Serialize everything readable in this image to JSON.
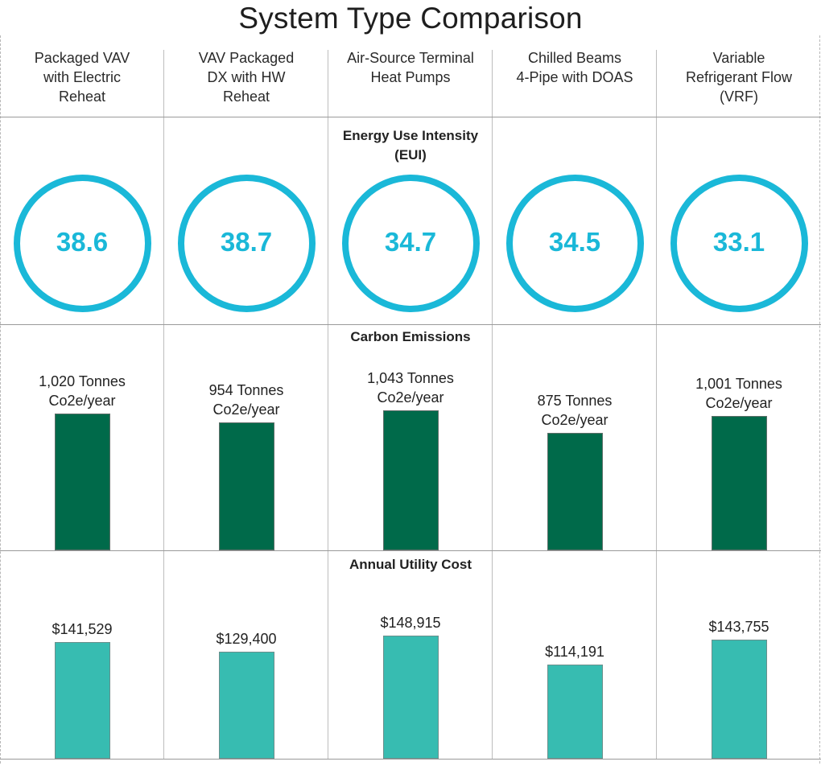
{
  "title": "System Type Comparison",
  "columns": [
    {
      "label": "Packaged VAV with Electric Reheat",
      "lines": [
        "Packaged VAV",
        "with Electric",
        "Reheat"
      ]
    },
    {
      "label": "VAV Packaged DX with HW Reheat",
      "lines": [
        "VAV Packaged",
        "DX with HW",
        "Reheat"
      ]
    },
    {
      "label": "Air-Source Terminal Heat Pumps",
      "lines": [
        "Air-Source Terminal",
        "Heat Pumps"
      ]
    },
    {
      "label": "Chilled Beams 4-Pipe with DOAS",
      "lines": [
        "Chilled Beams",
        "4-Pipe with DOAS"
      ]
    },
    {
      "label": "Variable Refrigerant Flow (VRF)",
      "lines": [
        "Variable",
        "Refrigerant Flow",
        "(VRF)"
      ]
    }
  ],
  "sections": {
    "eui": {
      "title_lines": [
        "Energy Use Intensity",
        "(EUI)"
      ]
    },
    "carbon": {
      "title_lines": [
        "Carbon Emissions"
      ]
    },
    "cost": {
      "title_lines": [
        "Annual Utility Cost"
      ]
    }
  },
  "colors": {
    "ring": "#1ab8d8",
    "carbon_bar": "#006a4a",
    "cost_bar": "#37bcb1"
  },
  "chart_data": [
    {
      "type": "table",
      "title": "Energy Use Intensity (EUI)",
      "categories": [
        "Packaged VAV with Electric Reheat",
        "VAV Packaged DX with HW Reheat",
        "Air-Source Terminal Heat Pumps",
        "Chilled Beams 4-Pipe with DOAS",
        "Variable Refrigerant Flow (VRF)"
      ],
      "values": [
        38.6,
        38.7,
        34.7,
        34.5,
        33.1
      ],
      "value_labels": [
        "38.6",
        "38.7",
        "34.7",
        "34.5",
        "33.1"
      ]
    },
    {
      "type": "bar",
      "title": "Carbon Emissions",
      "categories": [
        "Packaged VAV with Electric Reheat",
        "VAV Packaged DX with HW Reheat",
        "Air-Source Terminal Heat Pumps",
        "Chilled Beams 4-Pipe with DOAS",
        "Variable Refrigerant Flow (VRF)"
      ],
      "values": [
        1020,
        954,
        1043,
        875,
        1001
      ],
      "value_labels": [
        [
          "1,020 Tonnes",
          "Co2e/year"
        ],
        [
          "954 Tonnes",
          "Co2e/year"
        ],
        [
          "1,043 Tonnes",
          "Co2e/year"
        ],
        [
          "875 Tonnes",
          "Co2e/year"
        ],
        [
          "1,001 Tonnes",
          "Co2e/year"
        ]
      ],
      "ylim": [
        0,
        1043
      ]
    },
    {
      "type": "bar",
      "title": "Annual Utility Cost",
      "categories": [
        "Packaged VAV with Electric Reheat",
        "VAV Packaged DX with HW Reheat",
        "Air-Source Terminal Heat Pumps",
        "Chilled Beams 4-Pipe with DOAS",
        "Variable Refrigerant Flow (VRF)"
      ],
      "values": [
        141529,
        129400,
        148915,
        114191,
        143755
      ],
      "value_labels": [
        [
          "$141,529"
        ],
        [
          "$129,400"
        ],
        [
          "$148,915"
        ],
        [
          "$114,191"
        ],
        [
          "$143,755"
        ]
      ],
      "ylim": [
        0,
        148915
      ]
    }
  ]
}
